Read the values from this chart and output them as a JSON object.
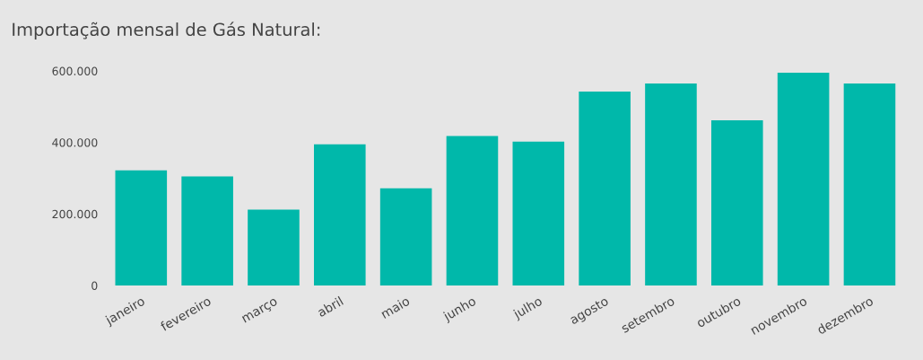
{
  "chart_data": {
    "type": "bar",
    "title": "Importação mensal de Gás Natural:",
    "categories": [
      "janeiro",
      "fevereiro",
      "março",
      "abril",
      "maio",
      "junho",
      "julho",
      "agosto",
      "setembro",
      "outubro",
      "novembro",
      "dezembro"
    ],
    "values": [
      322000,
      305000,
      212000,
      395000,
      272000,
      418000,
      402000,
      542000,
      565000,
      462000,
      595000,
      565000
    ],
    "color": "#00b8aa",
    "ylim": [
      0,
      600000
    ],
    "yticks": [
      {
        "value": 0,
        "label": "0"
      },
      {
        "value": 200000,
        "label": "200.000"
      },
      {
        "value": 400000,
        "label": "400.000"
      },
      {
        "value": 600000,
        "label": "600.000"
      }
    ],
    "grid": false,
    "legend": false
  }
}
